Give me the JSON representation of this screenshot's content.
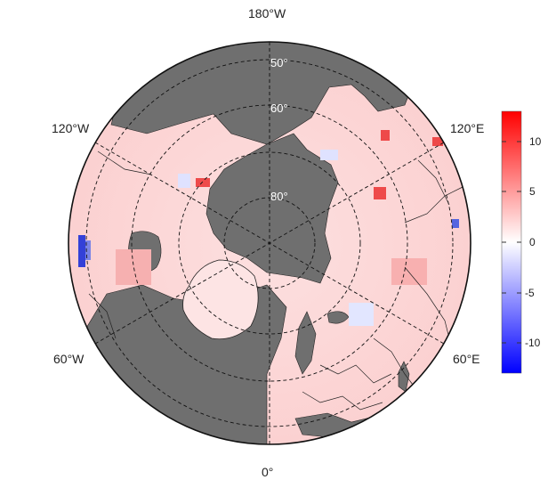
{
  "map": {
    "longitude_labels": {
      "top": "180°W",
      "upper_left": "120°W",
      "upper_right": "120°E",
      "lower_left": "60°W",
      "lower_right": "60°E",
      "bottom": "0°"
    },
    "latitude_labels": [
      "50°",
      "60°",
      "80°"
    ],
    "colors": {
      "land_mask": "#6f6f6f",
      "ocean_mask": "#6f6f6f",
      "data_pale": "#ffe4e4",
      "data_warm": "#f8a8a8",
      "data_hot": "#ee4a4a",
      "data_cool": "#dfe2ff",
      "data_cold": "#3341d8"
    }
  },
  "colorbar": {
    "tick_labels": [
      "10",
      "5",
      "0",
      "-5",
      "-10"
    ],
    "ticks": [
      10,
      5,
      0,
      -5,
      -10
    ],
    "range": [
      -13,
      13
    ],
    "colors": {
      "min": "#0000ff",
      "mid": "#ffffff",
      "max": "#ff0000"
    }
  }
}
